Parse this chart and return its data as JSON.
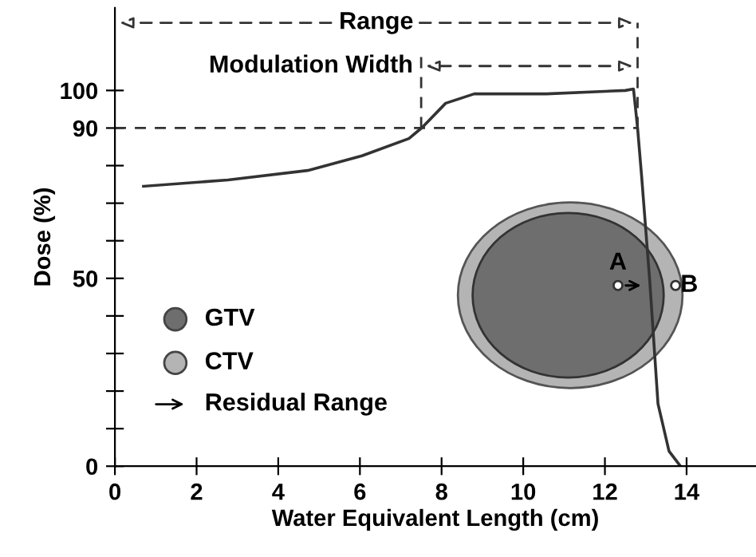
{
  "chart_data": {
    "type": "line",
    "xlabel": "Water Equivalent Length (cm)",
    "ylabel": "Dose (%)",
    "x": [
      0.7,
      2.77,
      4.72,
      6.05,
      7.2,
      7.53,
      8.1,
      8.8,
      10.57,
      12.5,
      12.7,
      12.8,
      12.9,
      13.1,
      13.3,
      13.57,
      13.85
    ],
    "values": [
      74.5,
      76.2,
      78.7,
      82.6,
      87.2,
      90.2,
      96.6,
      99.1,
      99.1,
      100,
      100.4,
      90,
      77,
      49,
      16.6,
      4,
      0
    ],
    "color": "#333333",
    "marker": "none",
    "line_style": "solid",
    "xlim": [
      0,
      15.7
    ],
    "ylim": [
      0,
      122
    ],
    "xticks": [
      0,
      2,
      4,
      6,
      8,
      10,
      12,
      14
    ],
    "yticks": [
      0,
      {
        "value": 10,
        "label": null
      },
      {
        "value": 20,
        "label": null
      },
      {
        "value": 30,
        "label": null
      },
      {
        "value": 40,
        "label": null
      },
      50,
      {
        "value": 60,
        "label": null
      },
      {
        "value": 70,
        "label": null
      },
      {
        "value": 80,
        "label": null
      },
      90,
      100
    ],
    "grid": false,
    "legend": false,
    "ref_lines": [
      {
        "axis": "y",
        "value": 90,
        "line_style": "dashed",
        "color": "#333333"
      },
      {
        "axis": "x",
        "value": 7.5,
        "line_style": "dashed",
        "color": "#333333"
      },
      {
        "axis": "x",
        "value": 12.8,
        "line_style": "dashed",
        "color": "#333333"
      }
    ],
    "annotations": [
      "Range",
      "Modulation Width",
      "GTV",
      "CTV",
      "Residual Range",
      "A",
      "B"
    ]
  }
}
